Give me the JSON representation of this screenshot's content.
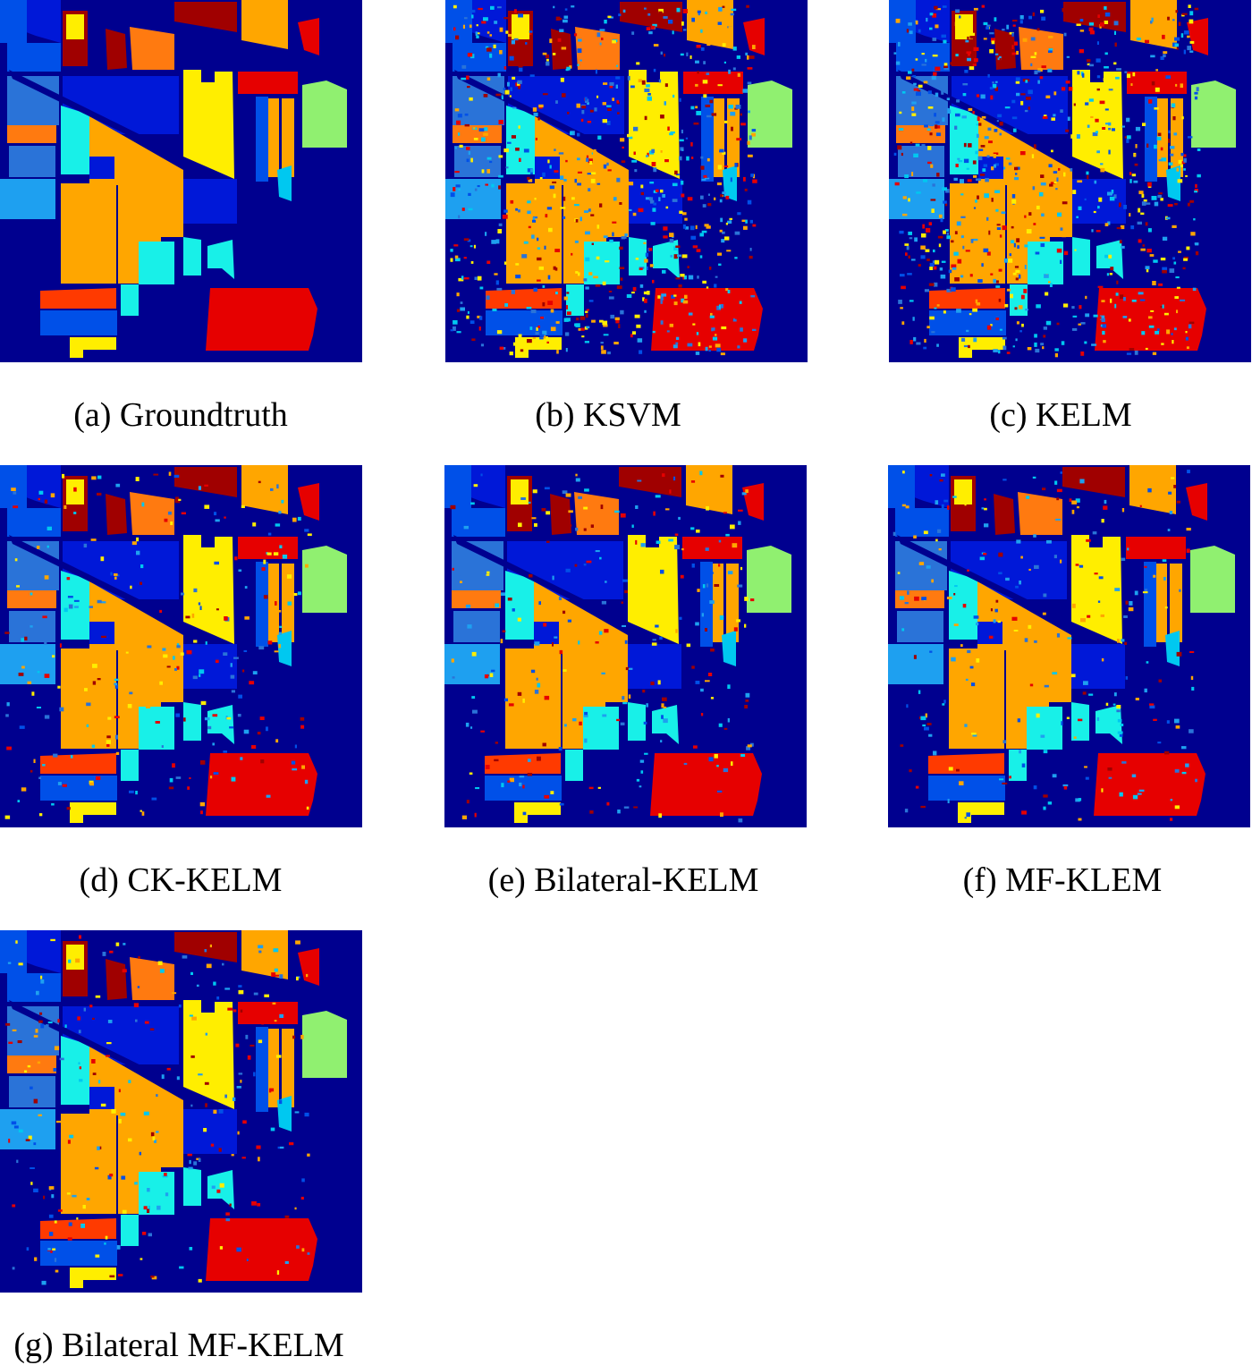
{
  "figure": {
    "panels": [
      {
        "id": "a",
        "caption": "(a) Groundtruth",
        "noise_level": 0
      },
      {
        "id": "b",
        "caption": "(b) KSVM",
        "noise_level": 3
      },
      {
        "id": "c",
        "caption": "(c) KELM",
        "noise_level": 3
      },
      {
        "id": "d",
        "caption": "(d) CK-KELM",
        "noise_level": 1
      },
      {
        "id": "e",
        "caption": "(e) Bilateral-KELM",
        "noise_level": 1
      },
      {
        "id": "f",
        "caption": "(f) MF-KLEM",
        "noise_level": 1
      },
      {
        "id": "g",
        "caption": "(g) Bilateral MF-KELM",
        "noise_level": 1
      }
    ],
    "colormap": {
      "background": "#00008f",
      "navy": "#0018d8",
      "blue": "#0050e8",
      "mid_blue": "#2a73d8",
      "light_blue": "#1ea0f0",
      "sky": "#00c8f0",
      "cyan": "#18f0e8",
      "yellow": "#ffee00",
      "orange": "#ffa600",
      "dark_orange": "#ff7a10",
      "red_orange": "#ff3a00",
      "red": "#e60000",
      "dark_red": "#a00000",
      "light_green": "#90f070"
    }
  }
}
